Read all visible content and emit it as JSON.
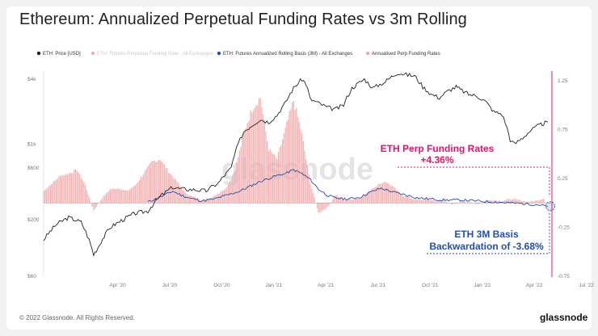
{
  "title": "Ethereum: Annualized Perpetual Funding Rates vs 3m Rolling",
  "footer": {
    "copyright": "© 2022 Glassnode. All Rights Reserved.",
    "brand": "glassnode"
  },
  "watermark": "glassnode",
  "colors": {
    "price": "#222222",
    "funding_disabled": "#f4a6c4",
    "basis": "#1f4fb3",
    "funding_bars": "#f2a6a6",
    "accent": "#e0156b"
  },
  "chart_data": {
    "type": "line",
    "title": "Ethereum: Annualized Perpetual Funding Rates vs 3m Rolling",
    "legend": [
      {
        "name": "ETH: Price [USD]",
        "color": "#222222",
        "type": "line"
      },
      {
        "name": "ETH: Futures Perpetual Funding Rate - All Exchanges",
        "color": "#f4a6c4",
        "type": "line",
        "disabled": true
      },
      {
        "name": "ETH: Futures Annualized Rolling Basis (3M) - All Exchanges",
        "color": "#1f4fb3",
        "type": "line"
      },
      {
        "name": "Annualised Perp Funding Rates",
        "color": "#f2a6a6",
        "type": "bar"
      }
    ],
    "legend_position": "top-left",
    "x_ticks": [
      "Apr '20",
      "Jul '20",
      "Oct '20",
      "Jan '21",
      "Apr '21",
      "Jul '21",
      "Oct '21",
      "Jan '22",
      "Apr '22",
      "Jul '22"
    ],
    "left_axis": {
      "scale": "log",
      "ticks": [
        "$4k",
        "$1k",
        "$600",
        "$200",
        "$60"
      ],
      "tick_values": [
        4000,
        1000,
        600,
        200,
        60
      ]
    },
    "right_axis": {
      "ticks": [
        "1.25",
        "0.75",
        "0.25",
        "-0.25",
        "-0.75"
      ],
      "range": [
        -0.75,
        1.25
      ]
    },
    "series": [
      {
        "name": "ETH: Price [USD]",
        "axis": "left",
        "points": [
          [
            0.0,
            130
          ],
          [
            0.03,
            180
          ],
          [
            0.06,
            210
          ],
          [
            0.09,
            190
          ],
          [
            0.12,
            95
          ],
          [
            0.13,
            110
          ],
          [
            0.16,
            170
          ],
          [
            0.19,
            200
          ],
          [
            0.22,
            230
          ],
          [
            0.25,
            240
          ],
          [
            0.28,
            330
          ],
          [
            0.31,
            400
          ],
          [
            0.33,
            385
          ],
          [
            0.36,
            380
          ],
          [
            0.39,
            370
          ],
          [
            0.42,
            440
          ],
          [
            0.45,
            600
          ],
          [
            0.48,
            1300
          ],
          [
            0.5,
            1500
          ],
          [
            0.52,
            1700
          ],
          [
            0.54,
            1600
          ],
          [
            0.56,
            1850
          ],
          [
            0.58,
            2400
          ],
          [
            0.6,
            3300
          ],
          [
            0.62,
            4000
          ],
          [
            0.63,
            3600
          ],
          [
            0.64,
            2600
          ],
          [
            0.66,
            2400
          ],
          [
            0.68,
            2200
          ],
          [
            0.7,
            2100
          ],
          [
            0.72,
            2300
          ],
          [
            0.74,
            3300
          ],
          [
            0.77,
            4000
          ],
          [
            0.79,
            3300
          ],
          [
            0.82,
            3800
          ],
          [
            0.85,
            4600
          ],
          [
            0.87,
            4400
          ],
          [
            0.89,
            4300
          ],
          [
            0.91,
            3400
          ],
          [
            0.93,
            2900
          ],
          [
            0.95,
            2700
          ],
          [
            0.97,
            3100
          ],
          [
            0.99,
            3400
          ],
          [
            1.0,
            3200
          ],
          [
            1.02,
            2900
          ],
          [
            1.04,
            2800
          ],
          [
            1.06,
            2500
          ],
          [
            1.08,
            2000
          ],
          [
            1.1,
            1900
          ],
          [
            1.12,
            1100
          ],
          [
            1.13,
            1000
          ],
          [
            1.15,
            1150
          ],
          [
            1.17,
            1350
          ],
          [
            1.19,
            1500
          ],
          [
            1.2,
            1560
          ],
          [
            1.21,
            1600
          ]
        ]
      },
      {
        "name": "ETH: Futures Annualized Rolling Basis (3M) - All Exchanges",
        "axis": "right",
        "points": [
          [
            0.25,
            0.01
          ],
          [
            0.28,
            0.06
          ],
          [
            0.31,
            0.12
          ],
          [
            0.33,
            0.08
          ],
          [
            0.35,
            0.05
          ],
          [
            0.38,
            0.02
          ],
          [
            0.41,
            0.04
          ],
          [
            0.44,
            0.08
          ],
          [
            0.47,
            0.12
          ],
          [
            0.5,
            0.18
          ],
          [
            0.52,
            0.22
          ],
          [
            0.54,
            0.25
          ],
          [
            0.56,
            0.28
          ],
          [
            0.58,
            0.3
          ],
          [
            0.6,
            0.34
          ],
          [
            0.62,
            0.3
          ],
          [
            0.64,
            0.24
          ],
          [
            0.66,
            0.14
          ],
          [
            0.68,
            0.08
          ],
          [
            0.7,
            0.05
          ],
          [
            0.73,
            0.04
          ],
          [
            0.76,
            0.06
          ],
          [
            0.79,
            0.12
          ],
          [
            0.81,
            0.15
          ],
          [
            0.84,
            0.11
          ],
          [
            0.87,
            0.08
          ],
          [
            0.9,
            0.05
          ],
          [
            0.93,
            0.04
          ],
          [
            0.96,
            0.03
          ],
          [
            1.0,
            0.03
          ],
          [
            1.04,
            0.02
          ],
          [
            1.08,
            0.01
          ],
          [
            1.12,
            0.0
          ],
          [
            1.16,
            -0.01
          ],
          [
            1.19,
            -0.02
          ],
          [
            1.21,
            -0.037
          ]
        ]
      },
      {
        "name": "Annualised Perp Funding Rates",
        "axis": "right",
        "type": "bar",
        "points": [
          [
            0.0,
            0.12
          ],
          [
            0.02,
            0.2
          ],
          [
            0.04,
            0.28
          ],
          [
            0.06,
            0.3
          ],
          [
            0.08,
            0.34
          ],
          [
            0.1,
            0.18
          ],
          [
            0.12,
            -0.08
          ],
          [
            0.14,
            0.05
          ],
          [
            0.16,
            0.14
          ],
          [
            0.18,
            0.15
          ],
          [
            0.2,
            0.12
          ],
          [
            0.22,
            0.18
          ],
          [
            0.24,
            0.3
          ],
          [
            0.26,
            0.42
          ],
          [
            0.28,
            0.45
          ],
          [
            0.3,
            0.32
          ],
          [
            0.32,
            0.22
          ],
          [
            0.34,
            0.1
          ],
          [
            0.36,
            0.06
          ],
          [
            0.38,
            0.03
          ],
          [
            0.4,
            0.05
          ],
          [
            0.42,
            0.1
          ],
          [
            0.44,
            0.16
          ],
          [
            0.46,
            0.35
          ],
          [
            0.48,
            0.7
          ],
          [
            0.5,
            0.96
          ],
          [
            0.52,
            1.08
          ],
          [
            0.54,
            0.55
          ],
          [
            0.56,
            0.45
          ],
          [
            0.58,
            0.75
          ],
          [
            0.6,
            1.05
          ],
          [
            0.62,
            0.7
          ],
          [
            0.64,
            0.2
          ],
          [
            0.66,
            -0.1
          ],
          [
            0.68,
            -0.05
          ],
          [
            0.7,
            0.08
          ],
          [
            0.72,
            0.03
          ],
          [
            0.74,
            0.04
          ],
          [
            0.76,
            0.05
          ],
          [
            0.78,
            0.12
          ],
          [
            0.8,
            0.18
          ],
          [
            0.82,
            0.22
          ],
          [
            0.84,
            0.16
          ],
          [
            0.86,
            0.08
          ],
          [
            0.88,
            0.05
          ],
          [
            0.9,
            0.03
          ],
          [
            0.92,
            0.04
          ],
          [
            0.94,
            0.02
          ],
          [
            0.96,
            0.03
          ],
          [
            0.98,
            -0.02
          ],
          [
            1.0,
            0.02
          ],
          [
            1.02,
            0.01
          ],
          [
            1.04,
            -0.01
          ],
          [
            1.06,
            0.02
          ],
          [
            1.08,
            0.03
          ],
          [
            1.1,
            0.02
          ],
          [
            1.12,
            0.04
          ],
          [
            1.14,
            0.03
          ],
          [
            1.16,
            0.01
          ],
          [
            1.18,
            0.02
          ],
          [
            1.2,
            0.0436
          ]
        ]
      }
    ],
    "annotations": [
      {
        "label": "ETH Perp Funding Rates",
        "value": "+4.36%",
        "color": "#e0156b"
      },
      {
        "label": "ETH 3M Basis",
        "value": "Backwardation of -3.68%",
        "color": "#1f4fb3"
      }
    ]
  }
}
